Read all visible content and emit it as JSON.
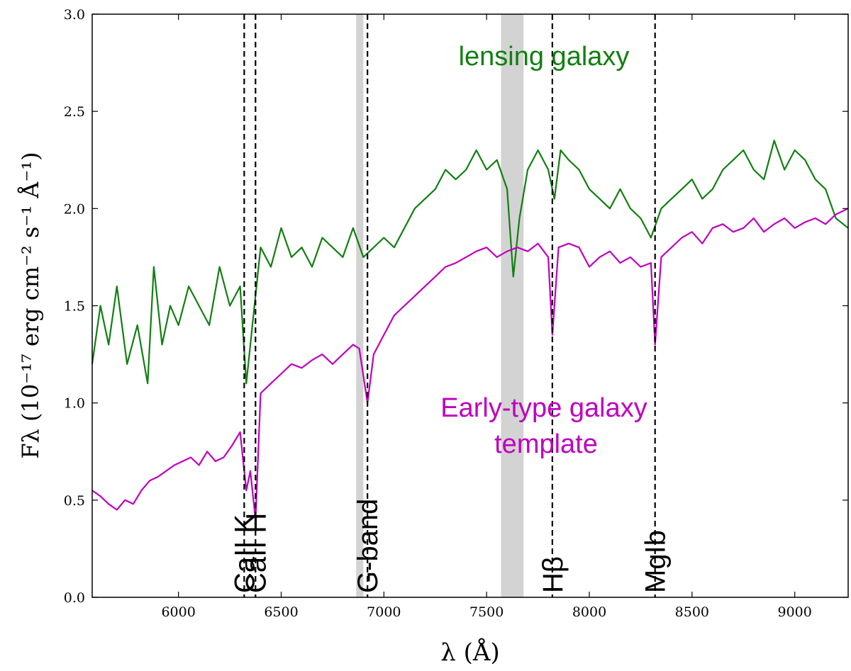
{
  "chart_data": {
    "type": "line",
    "title": "",
    "xlabel": "λ (Å)",
    "ylabel": "Fλ (10⁻¹⁷ erg cm⁻² s⁻¹ Å⁻¹)",
    "xlim": [
      5580,
      9260
    ],
    "ylim": [
      0.0,
      3.0
    ],
    "xticks": [
      6000,
      6500,
      7000,
      7500,
      8000,
      8500,
      9000
    ],
    "yticks": [
      0.0,
      0.5,
      1.0,
      1.5,
      2.0,
      2.5,
      3.0
    ],
    "grid": false,
    "shaded_bands": [
      {
        "x0": 6865,
        "x1": 6900,
        "color": "#d3d3d3"
      },
      {
        "x0": 7570,
        "x1": 7680,
        "color": "#d3d3d3"
      }
    ],
    "reference_lines": [
      {
        "x": 6320,
        "label": "CaII K"
      },
      {
        "x": 6375,
        "label": "CaII H"
      },
      {
        "x": 6920,
        "label": "G-band"
      },
      {
        "x": 7820,
        "label": "Hβ"
      },
      {
        "x": 8320,
        "label": "MgIb"
      }
    ],
    "series": [
      {
        "name": "lensing galaxy",
        "color": "#117f11",
        "x": [
          5580,
          5620,
          5660,
          5700,
          5750,
          5800,
          5850,
          5880,
          5920,
          5960,
          6000,
          6050,
          6100,
          6150,
          6200,
          6250,
          6300,
          6330,
          6360,
          6400,
          6450,
          6500,
          6550,
          6600,
          6650,
          6700,
          6750,
          6800,
          6850,
          6900,
          6950,
          7000,
          7050,
          7100,
          7150,
          7200,
          7250,
          7300,
          7350,
          7400,
          7450,
          7500,
          7550,
          7600,
          7630,
          7660,
          7700,
          7750,
          7800,
          7830,
          7860,
          7900,
          7950,
          8000,
          8050,
          8100,
          8150,
          8200,
          8250,
          8300,
          8350,
          8400,
          8450,
          8500,
          8550,
          8600,
          8650,
          8700,
          8750,
          8800,
          8850,
          8900,
          8950,
          9000,
          9050,
          9100,
          9150,
          9200,
          9260
        ],
        "values": [
          1.2,
          1.5,
          1.3,
          1.6,
          1.2,
          1.4,
          1.1,
          1.7,
          1.3,
          1.5,
          1.4,
          1.6,
          1.5,
          1.4,
          1.7,
          1.5,
          1.6,
          1.1,
          1.4,
          1.8,
          1.7,
          1.9,
          1.75,
          1.8,
          1.7,
          1.85,
          1.8,
          1.75,
          1.9,
          1.75,
          1.8,
          1.85,
          1.8,
          1.9,
          2.0,
          2.05,
          2.1,
          2.2,
          2.15,
          2.2,
          2.3,
          2.2,
          2.25,
          2.1,
          1.65,
          1.95,
          2.2,
          2.3,
          2.2,
          2.05,
          2.3,
          2.25,
          2.2,
          2.1,
          2.05,
          2.0,
          2.1,
          2.0,
          1.95,
          1.85,
          2.0,
          2.05,
          2.1,
          2.15,
          2.05,
          2.1,
          2.2,
          2.25,
          2.3,
          2.2,
          2.15,
          2.35,
          2.2,
          2.3,
          2.25,
          2.15,
          2.1,
          1.95,
          1.9
        ]
      },
      {
        "name": "Early-type galaxy template",
        "color": "#bf00bf",
        "x": [
          5580,
          5620,
          5660,
          5700,
          5740,
          5780,
          5820,
          5860,
          5900,
          5940,
          5980,
          6020,
          6060,
          6100,
          6140,
          6180,
          6220,
          6260,
          6300,
          6330,
          6350,
          6375,
          6400,
          6450,
          6500,
          6550,
          6600,
          6650,
          6700,
          6750,
          6800,
          6850,
          6880,
          6920,
          6950,
          7000,
          7050,
          7100,
          7150,
          7200,
          7250,
          7300,
          7350,
          7400,
          7450,
          7500,
          7550,
          7600,
          7650,
          7700,
          7750,
          7800,
          7820,
          7850,
          7900,
          7950,
          8000,
          8050,
          8100,
          8150,
          8200,
          8250,
          8300,
          8320,
          8350,
          8400,
          8450,
          8500,
          8550,
          8600,
          8650,
          8700,
          8750,
          8800,
          8850,
          8900,
          8950,
          9000,
          9050,
          9100,
          9150,
          9200,
          9260
        ],
        "values": [
          0.55,
          0.52,
          0.48,
          0.45,
          0.5,
          0.48,
          0.55,
          0.6,
          0.62,
          0.65,
          0.68,
          0.7,
          0.72,
          0.68,
          0.75,
          0.7,
          0.72,
          0.78,
          0.85,
          0.55,
          0.65,
          0.4,
          1.05,
          1.1,
          1.15,
          1.2,
          1.18,
          1.22,
          1.25,
          1.2,
          1.25,
          1.3,
          1.28,
          1.0,
          1.25,
          1.35,
          1.45,
          1.5,
          1.55,
          1.6,
          1.65,
          1.7,
          1.72,
          1.75,
          1.78,
          1.8,
          1.75,
          1.78,
          1.8,
          1.78,
          1.82,
          1.75,
          1.35,
          1.8,
          1.82,
          1.8,
          1.7,
          1.75,
          1.78,
          1.72,
          1.75,
          1.7,
          1.72,
          1.3,
          1.75,
          1.8,
          1.85,
          1.88,
          1.82,
          1.9,
          1.92,
          1.88,
          1.9,
          1.95,
          1.88,
          1.92,
          1.95,
          1.9,
          1.93,
          1.95,
          1.92,
          1.97,
          2.0
        ]
      }
    ],
    "annotations": [
      {
        "text": "lensing galaxy",
        "color": "#117f11"
      },
      {
        "text": "Early-type galaxy",
        "color": "#bf00bf"
      },
      {
        "text": "template",
        "color": "#bf00bf"
      }
    ]
  }
}
